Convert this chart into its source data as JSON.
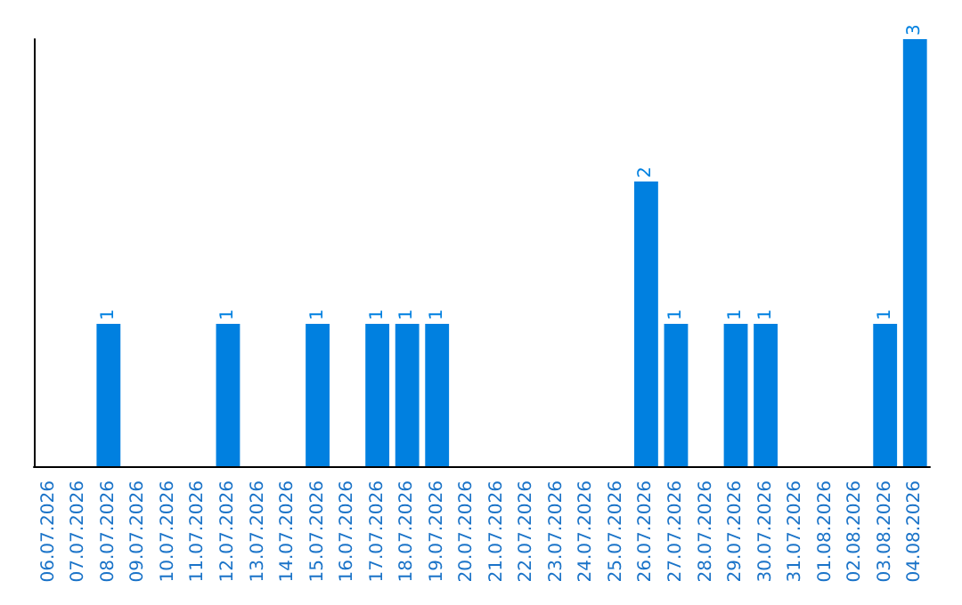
{
  "chart_data": {
    "type": "bar",
    "categories": [
      "06.07.2026",
      "07.07.2026",
      "08.07.2026",
      "09.07.2026",
      "10.07.2026",
      "11.07.2026",
      "12.07.2026",
      "13.07.2026",
      "14.07.2026",
      "15.07.2026",
      "16.07.2026",
      "17.07.2026",
      "18.07.2026",
      "19.07.2026",
      "20.07.2026",
      "21.07.2026",
      "22.07.2026",
      "23.07.2026",
      "24.07.2026",
      "25.07.2026",
      "26.07.2026",
      "27.07.2026",
      "28.07.2026",
      "29.07.2026",
      "30.07.2026",
      "31.07.2026",
      "01.08.2026",
      "02.08.2026",
      "03.08.2026",
      "04.08.2026"
    ],
    "values": [
      0,
      0,
      1,
      0,
      0,
      0,
      1,
      0,
      0,
      1,
      0,
      1,
      1,
      1,
      0,
      0,
      0,
      0,
      0,
      0,
      2,
      1,
      0,
      1,
      1,
      0,
      0,
      0,
      1,
      3
    ],
    "value_labels": [
      null,
      null,
      "1",
      null,
      null,
      null,
      "1",
      null,
      null,
      "1",
      null,
      "1",
      "1",
      "1",
      null,
      null,
      null,
      null,
      null,
      null,
      "2",
      "1",
      null,
      "1",
      "1",
      null,
      null,
      null,
      "1",
      "3"
    ],
    "color": "#0080e0",
    "ylim": [
      0,
      3
    ],
    "tick_labels": "x",
    "grid": false
  }
}
